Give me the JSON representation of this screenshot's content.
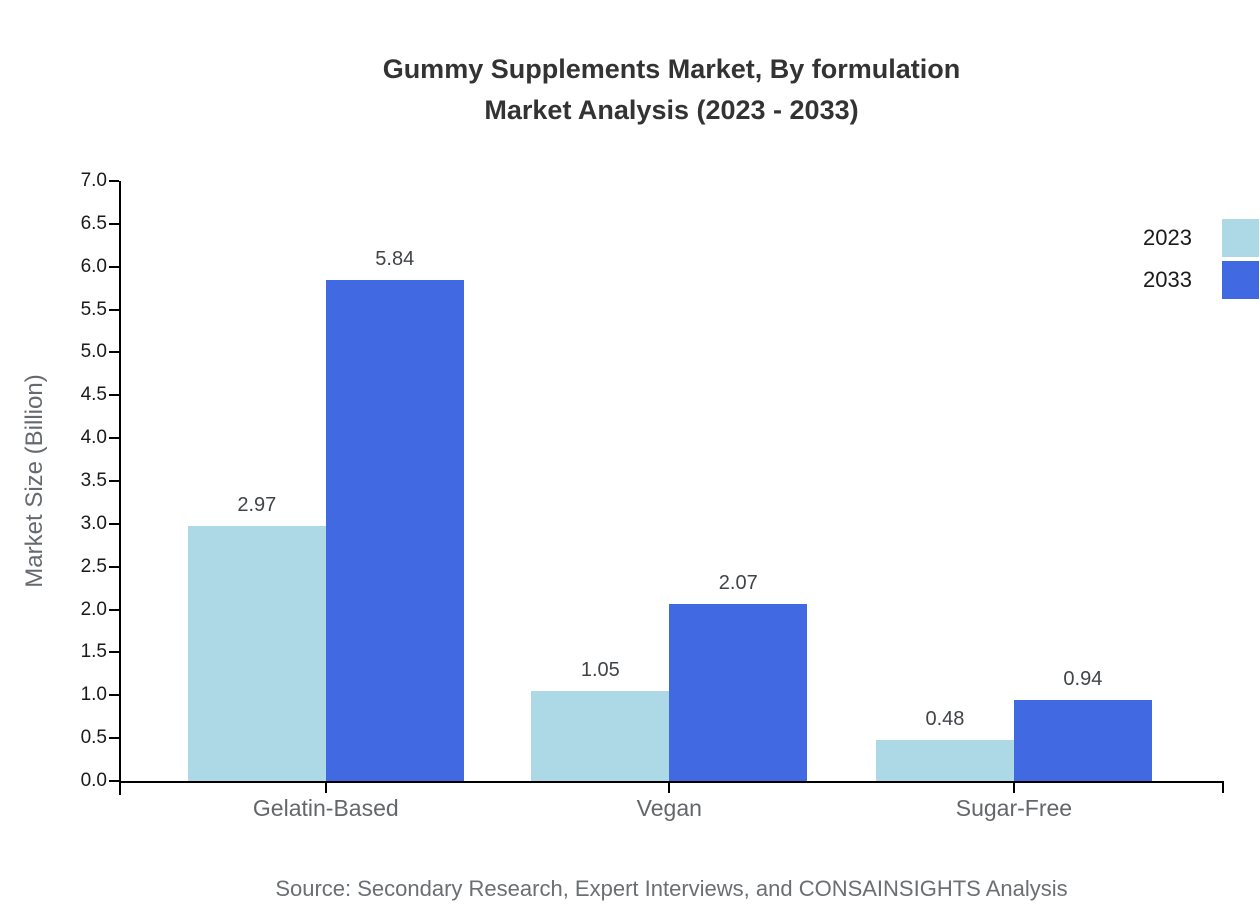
{
  "title": {
    "line1": "Gummy Supplements Market, By formulation",
    "line2": "Market Analysis (2023 - 2033)"
  },
  "source": "Source: Secondary Research, Expert Interviews, and CONSAINSIGHTS Analysis",
  "colors": {
    "series_2023": "#ADD8E6",
    "series_2033": "#4169E1",
    "axis_line": "#000000",
    "title_text": "#333333",
    "muted_text": "#666a6e"
  },
  "chart_data": {
    "type": "bar",
    "title": "Gummy Supplements Market, By formulation Market Analysis (2023 - 2033)",
    "categories": [
      "Gelatin-Based",
      "Vegan",
      "Sugar-Free"
    ],
    "series": [
      {
        "name": "2023",
        "color": "#ADD8E6",
        "values": [
          2.97,
          1.05,
          0.48
        ],
        "labels": [
          "2.97",
          "1.05",
          "0.48"
        ]
      },
      {
        "name": "2033",
        "color": "#4169E1",
        "values": [
          5.84,
          2.07,
          0.94
        ],
        "labels": [
          "5.84",
          "2.07",
          "0.94"
        ]
      }
    ],
    "xlabel": "",
    "ylabel": "Market Size (Billion)",
    "ylim": [
      0,
      7
    ],
    "ytick_step": 0.5,
    "ytick_format_decimals": 1,
    "grid": false,
    "legend_position": "outside-right-top",
    "layout": {
      "centers_frac": [
        0.186,
        0.498,
        0.811
      ],
      "bar_width_frac": 0.1253
    }
  }
}
